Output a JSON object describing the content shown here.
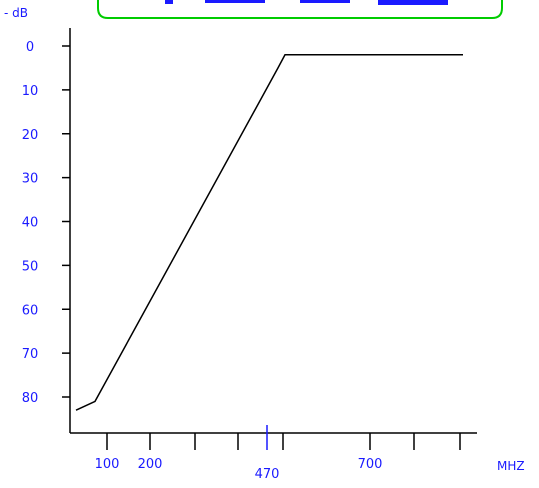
{
  "chart_data": {
    "type": "line",
    "title": "",
    "y_unit_label": "- dB",
    "x_unit_label": "MHZ",
    "y_axis_inverted": true,
    "ylim": [
      0,
      90
    ],
    "y_ticks": [
      0,
      10,
      20,
      30,
      40,
      50,
      60,
      70,
      80
    ],
    "x_ticks_labeled": [
      100,
      200,
      470,
      700
    ],
    "x_ticks_unlabeled": [
      300,
      400,
      500,
      800,
      900,
      1000
    ],
    "xlim": [
      30,
      1050
    ],
    "grid": false,
    "series": [
      {
        "x": [
          40,
          90,
          480,
          495,
          510,
          600,
          900
        ],
        "y": [
          83,
          81,
          5,
          2,
          2,
          2,
          2
        ]
      }
    ]
  },
  "colors": {
    "axis_labels": "#1a1aff",
    "line": "#000000",
    "frame": "#00cc00",
    "axis": "#000000",
    "highlight_tick": "#1a1aff"
  }
}
